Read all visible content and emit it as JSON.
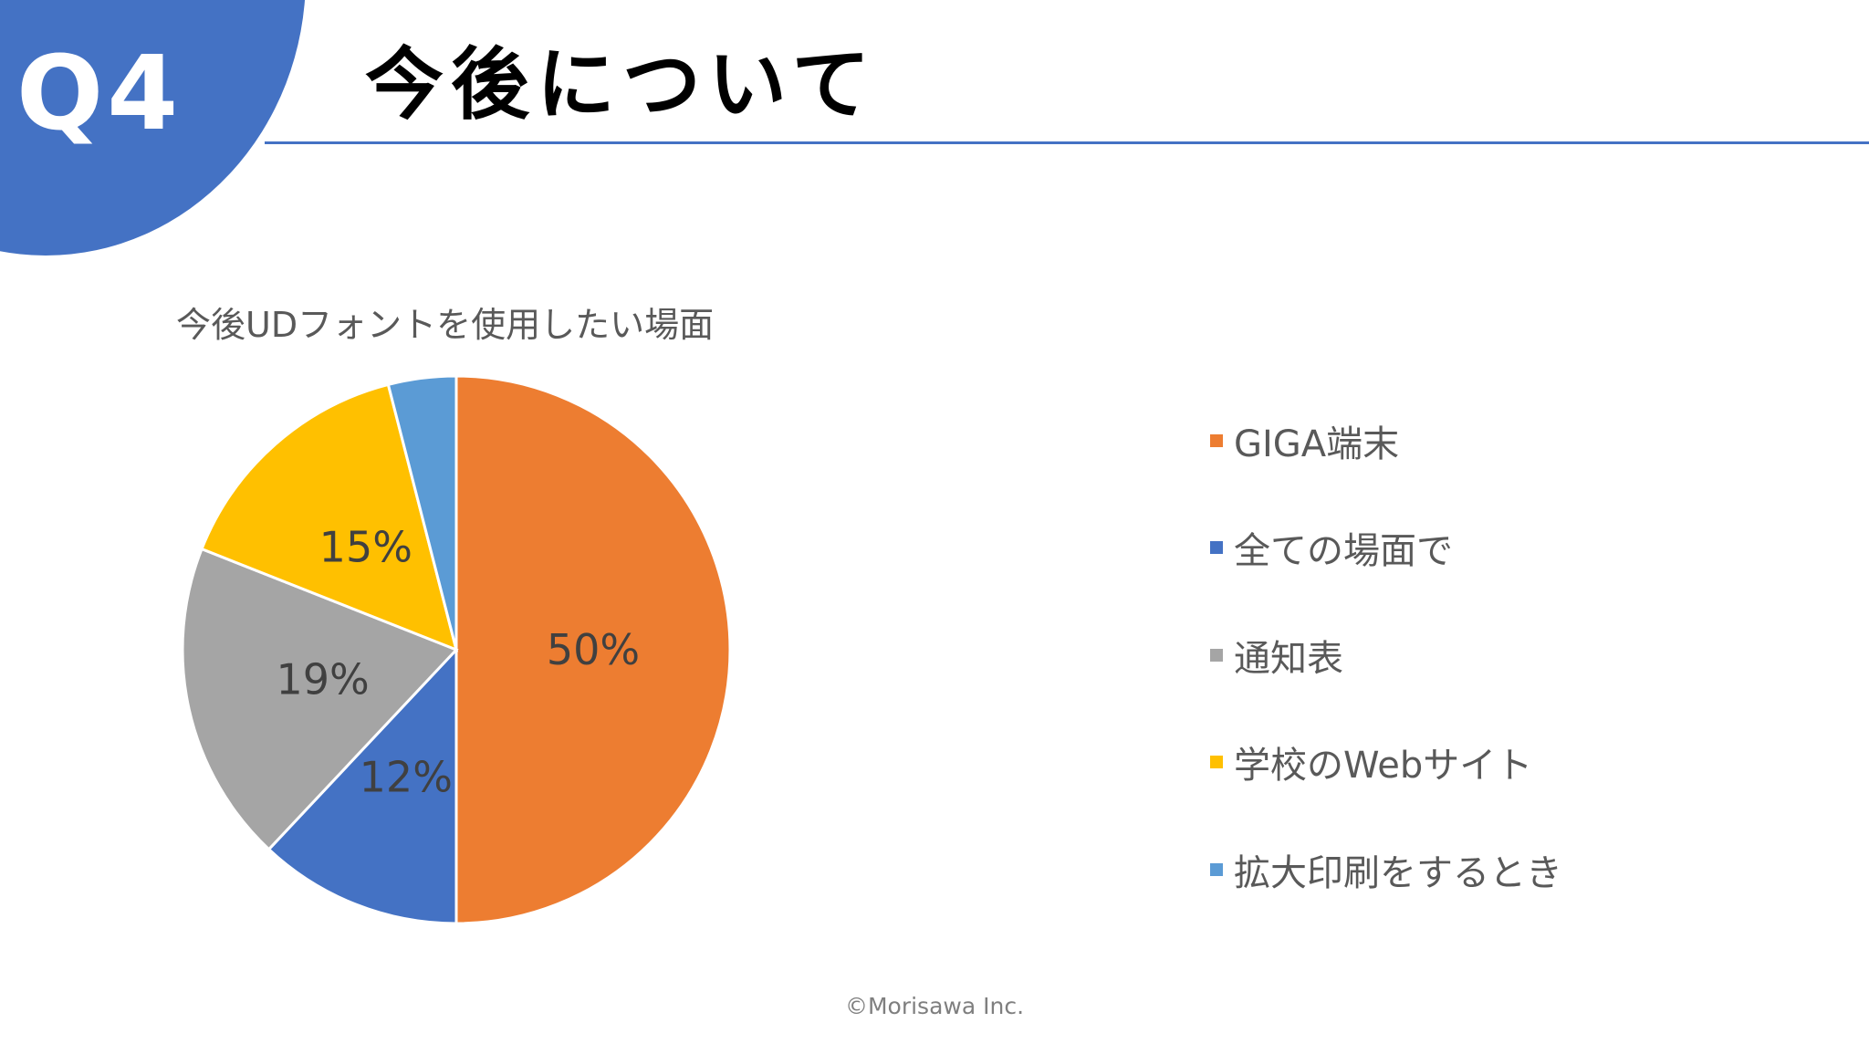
{
  "header": {
    "badge": "Q4",
    "title": "今後について"
  },
  "chart_data": {
    "type": "pie",
    "title": "今後UDフォントを使用したい場面",
    "legend_position": "right",
    "start_angle": "12 o'clock, clockwise",
    "slices": [
      {
        "name": "GIGA端末",
        "value": 50,
        "label": "50%",
        "color": "#ed7d31"
      },
      {
        "name": "全ての場面で",
        "value": 12,
        "label": "12%",
        "color": "#4472c4"
      },
      {
        "name": "通知表",
        "value": 19,
        "label": "19%",
        "color": "#a5a5a5"
      },
      {
        "name": "学校のWebサイト",
        "value": 15,
        "label": "15%",
        "color": "#ffc000"
      },
      {
        "name": "拡大印刷をするとき",
        "value": 4,
        "label": "",
        "color": "#5b9bd5"
      }
    ]
  },
  "footer": {
    "copyright": "©Morisawa Inc."
  },
  "colors": {
    "accent": "#4472c4"
  }
}
